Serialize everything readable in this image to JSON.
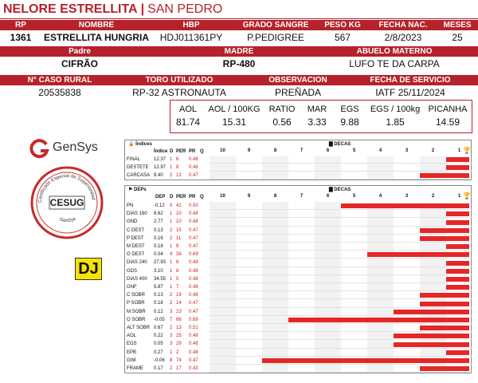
{
  "title": {
    "breed": "NELORE ESTRELLITA",
    "separator": "|",
    "farm": "SAN PEDRO"
  },
  "row1": {
    "headers": [
      "RP",
      "NOMBRE",
      "HBP",
      "GRADO SANGRE",
      "PESO KG",
      "FECHA NAC.",
      "MESES"
    ],
    "values": [
      "1361",
      "ESTRELLITA HUNGRIA",
      "HDJ011361PY",
      "P.PEDIGREE",
      "567",
      "2/8/2023",
      "25"
    ]
  },
  "row2": {
    "headers": [
      "Padre",
      "MADRE",
      "ABUELO MATERNO"
    ],
    "values": [
      "CIFRÃO",
      "RP-480",
      "LUFO TE DA CARPA"
    ]
  },
  "row3": {
    "headers": [
      "N° CASO RURAL",
      "TORO UTILIZADO",
      "OBSERVACION",
      "FECHA DE SERVICIO"
    ],
    "values": [
      "20535838",
      "RP-32 ASTRONAUTA",
      "PREÑADA",
      "IATF 25/11/2024"
    ]
  },
  "metrics": [
    {
      "label": "AOL",
      "value": "81.74"
    },
    {
      "label": "AOL / 100KG",
      "value": "15.31"
    },
    {
      "label": "RATIO",
      "value": "0.56"
    },
    {
      "label": "MAR",
      "value": "3.33"
    },
    {
      "label": "EGS",
      "value": "9.88"
    },
    {
      "label": "EGS / 100kg",
      "value": "1.85"
    },
    {
      "label": "PICANHA",
      "value": "14.59"
    }
  ],
  "logos": {
    "gensys": "GenSys",
    "cesug_ring": "Certificado Especial de Superioridad Genética",
    "cesug_center": "CESUG",
    "cesug_bottom": "GenSys",
    "dj": "DJ"
  },
  "icons": {
    "indices": "lock-icon",
    "deps": "tag-icon",
    "decas": "bar-chart-icon",
    "best": "trophy-icon"
  },
  "colors": {
    "brand_red": "#b5222a",
    "bar_red": "#e52727",
    "trophy_gold": "#d8a800",
    "dj_yellow": "#f5e400"
  },
  "scale": {
    "decas_label": "DECAS",
    "ticks": [
      "10",
      "9",
      "8",
      "7",
      "6",
      "5",
      "4",
      "3",
      "2",
      "1"
    ]
  },
  "indices": {
    "label": "Índices",
    "headers": [
      "Índice",
      "D",
      "PER",
      "PR",
      "Q"
    ],
    "rows": [
      {
        "name": "FINAL",
        "indice": "12.37",
        "d": "1",
        "per": "6",
        "pr": "0.48",
        "q": ""
      },
      {
        "name": "DESTETE",
        "indice": "12.97",
        "d": "1",
        "per": "8",
        "pr": "0.48",
        "q": ""
      },
      {
        "name": "CARCASA",
        "indice": "8.40",
        "d": "2",
        "per": "13",
        "pr": "0.47",
        "q": ""
      }
    ]
  },
  "deps": {
    "label": "DEPs",
    "headers": [
      "DEP",
      "D",
      "PER",
      "PR",
      "Q"
    ],
    "rows": [
      {
        "name": "PN",
        "dep": "-0.12",
        "d": "5",
        "per": "41",
        "pr": "0.50",
        "q": ""
      },
      {
        "name": "DIAS 160",
        "dep": "6.62",
        "d": "1",
        "per": "10",
        "pr": "0.48",
        "q": ""
      },
      {
        "name": "GND",
        "dep": "2.77",
        "d": "1",
        "per": "10",
        "pr": "0.48",
        "q": ""
      },
      {
        "name": "C DEST",
        "dep": "0.13",
        "d": "2",
        "per": "15",
        "pr": "0.47",
        "q": ""
      },
      {
        "name": "P DEST",
        "dep": "0.16",
        "d": "2",
        "per": "11",
        "pr": "0.47",
        "q": ""
      },
      {
        "name": "M DEST",
        "dep": "0.18",
        "d": "1",
        "per": "9",
        "pr": "0.47",
        "q": ""
      },
      {
        "name": "O DEST",
        "dep": "0.04",
        "d": "4",
        "per": "38",
        "pr": "0.69",
        "q": ""
      },
      {
        "name": "DIAS 240",
        "dep": "27.93",
        "d": "1",
        "per": "8",
        "pr": "0.48",
        "q": ""
      },
      {
        "name": "GDS",
        "dep": "3.10",
        "d": "1",
        "per": "8",
        "pr": "0.48",
        "q": ""
      },
      {
        "name": "DIAS 400",
        "dep": "34.55",
        "d": "1",
        "per": "5",
        "pr": "0.48",
        "q": ""
      },
      {
        "name": "GNF",
        "dep": "5.87",
        "d": "1",
        "per": "7",
        "pr": "0.48",
        "q": ""
      },
      {
        "name": "C SOBR",
        "dep": "0.13",
        "d": "2",
        "per": "19",
        "pr": "0.48",
        "q": ""
      },
      {
        "name": "P SOBR",
        "dep": "0.18",
        "d": "2",
        "per": "14",
        "pr": "0.47",
        "q": ""
      },
      {
        "name": "M SOBR",
        "dep": "0.12",
        "d": "3",
        "per": "23",
        "pr": "0.47",
        "q": ""
      },
      {
        "name": "O SOBR",
        "dep": "-0.05",
        "d": "7",
        "per": "66",
        "pr": "0.69",
        "q": ""
      },
      {
        "name": "ALT SOBR",
        "dep": "0.67",
        "d": "2",
        "per": "13",
        "pr": "0.51",
        "q": ""
      },
      {
        "name": "AOL",
        "dep": "0.22",
        "d": "3",
        "per": "25",
        "pr": "0.48",
        "q": ""
      },
      {
        "name": "EGS",
        "dep": "0.05",
        "d": "3",
        "per": "29",
        "pr": "0.48",
        "q": ""
      },
      {
        "name": "EPB",
        "dep": "0.27",
        "d": "1",
        "per": "2",
        "pr": "0.48",
        "q": ""
      },
      {
        "name": "GIM",
        "dep": "-0.06",
        "d": "8",
        "per": "74",
        "pr": "0.47",
        "q": ""
      },
      {
        "name": "FRAME",
        "dep": "0.17",
        "d": "2",
        "per": "17",
        "pr": "0.43",
        "q": ""
      }
    ]
  }
}
